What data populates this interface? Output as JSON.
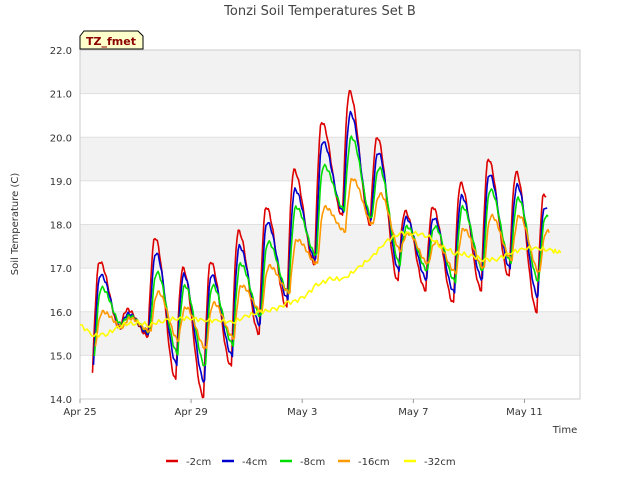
{
  "chart_data": {
    "type": "line",
    "title": "Tonzi Soil Temperatures Set B",
    "xlabel": "Time",
    "ylabel": "Soil Temperature (C)",
    "ylim": [
      14.0,
      22.0
    ],
    "xlim": [
      "Apr 25",
      "May 13"
    ],
    "y_ticks": [
      "14.0",
      "15.0",
      "16.0",
      "17.0",
      "18.0",
      "19.0",
      "20.0",
      "21.0",
      "22.0"
    ],
    "x_ticks": [
      {
        "label": "Apr 25",
        "day": 0
      },
      {
        "label": "Apr 29",
        "day": 4
      },
      {
        "label": "May 3",
        "day": 8
      },
      {
        "label": "May 7",
        "day": 12
      },
      {
        "label": "May 11",
        "day": 16
      }
    ],
    "grid": "horizontal bands",
    "legend_placement": "bottom",
    "tag": "TZ_fmet",
    "series": [
      {
        "name": "-2cm",
        "color": "#dd0000",
        "max": [
          17.15,
          16.05,
          17.7,
          17.0,
          17.15,
          17.85,
          18.4,
          19.25,
          20.35,
          21.05,
          20.0,
          18.3,
          18.4,
          18.95,
          19.5,
          19.2,
          18.7
        ],
        "min": [
          14.6,
          15.6,
          15.45,
          14.45,
          14.05,
          14.75,
          15.5,
          16.1,
          17.1,
          18.2,
          18.0,
          16.7,
          16.5,
          16.2,
          16.5,
          16.8,
          16.0
        ]
      },
      {
        "name": "-4cm",
        "color": "#0000cc",
        "max": [
          16.85,
          15.95,
          17.35,
          16.85,
          16.85,
          17.5,
          18.05,
          18.8,
          19.9,
          20.55,
          19.65,
          18.15,
          18.15,
          18.65,
          19.15,
          18.9,
          18.4
        ],
        "min": [
          14.75,
          15.65,
          15.5,
          14.8,
          14.4,
          15.0,
          15.7,
          16.3,
          17.2,
          18.3,
          18.1,
          16.95,
          16.75,
          16.45,
          16.75,
          17.0,
          16.35
        ]
      },
      {
        "name": "-8cm",
        "color": "#00dd00",
        "max": [
          16.55,
          15.9,
          16.9,
          16.6,
          16.6,
          17.1,
          17.6,
          18.4,
          19.35,
          20.0,
          19.3,
          17.95,
          17.95,
          18.4,
          18.8,
          18.6,
          18.2
        ],
        "min": [
          14.95,
          15.7,
          15.55,
          15.05,
          14.75,
          15.25,
          15.9,
          16.45,
          17.3,
          18.35,
          18.15,
          17.1,
          16.95,
          16.7,
          16.95,
          17.15,
          16.7
        ]
      },
      {
        "name": "-16cm",
        "color": "#ff9900",
        "max": [
          16.0,
          15.85,
          16.45,
          16.1,
          16.2,
          16.6,
          17.05,
          17.65,
          18.4,
          19.05,
          18.7,
          17.8,
          17.6,
          17.9,
          18.2,
          18.2,
          17.85
        ],
        "min": [
          15.2,
          15.65,
          15.55,
          15.35,
          15.15,
          15.4,
          16.0,
          16.45,
          17.1,
          17.85,
          18.0,
          17.4,
          17.1,
          16.9,
          17.0,
          17.2,
          16.9
        ]
      },
      {
        "name": "-32cm",
        "color": "#ffff00",
        "points": [
          [
            0,
            15.7
          ],
          [
            0.5,
            15.45
          ],
          [
            1,
            15.5
          ],
          [
            1.5,
            15.7
          ],
          [
            2,
            15.75
          ],
          [
            2.5,
            15.7
          ],
          [
            3,
            15.8
          ],
          [
            3.5,
            15.85
          ],
          [
            4,
            15.85
          ],
          [
            4.5,
            15.8
          ],
          [
            5,
            15.8
          ],
          [
            5.5,
            15.75
          ],
          [
            6,
            15.9
          ],
          [
            6.5,
            16.0
          ],
          [
            7,
            16.05
          ],
          [
            7.5,
            16.2
          ],
          [
            8,
            16.3
          ],
          [
            8.5,
            16.6
          ],
          [
            9,
            16.75
          ],
          [
            9.5,
            16.75
          ],
          [
            10,
            17.0
          ],
          [
            10.5,
            17.25
          ],
          [
            11,
            17.6
          ],
          [
            11.5,
            17.8
          ],
          [
            12,
            17.8
          ],
          [
            12.5,
            17.75
          ],
          [
            13,
            17.5
          ],
          [
            13.5,
            17.35
          ],
          [
            14,
            17.3
          ],
          [
            14.5,
            17.2
          ],
          [
            15,
            17.2
          ],
          [
            15.5,
            17.35
          ],
          [
            16,
            17.45
          ],
          [
            16.5,
            17.45
          ],
          [
            17,
            17.4
          ],
          [
            17.3,
            17.35
          ]
        ]
      }
    ]
  }
}
